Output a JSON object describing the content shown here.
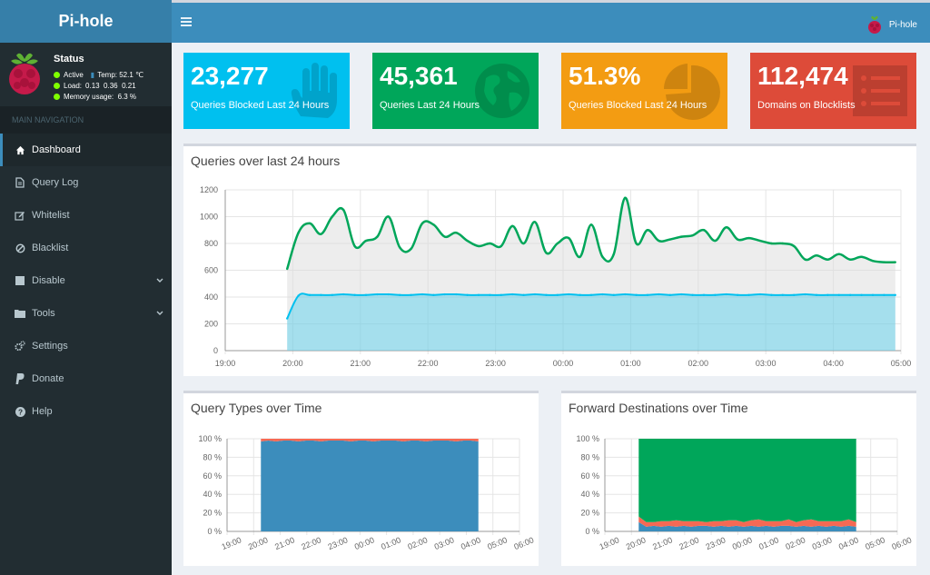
{
  "sidebar": {
    "logo": "Pi-hole",
    "status": {
      "title": "Status",
      "active": "Active",
      "temp": "Temp: 52.1 ℃",
      "load_label": "Load:",
      "load_values": "0.13  0.36  0.21",
      "memory": "Memory usage:  6.3 %"
    },
    "nav_header": "MAIN NAVIGATION",
    "items": [
      {
        "label": "Dashboard",
        "icon": "home-icon",
        "active": true
      },
      {
        "label": "Query Log",
        "icon": "file-icon"
      },
      {
        "label": "Whitelist",
        "icon": "edit-icon"
      },
      {
        "label": "Blacklist",
        "icon": "ban-icon"
      },
      {
        "label": "Disable",
        "icon": "stop-icon",
        "caret": true
      },
      {
        "label": "Tools",
        "icon": "folder-icon",
        "caret": true
      },
      {
        "label": "Settings",
        "icon": "gears-icon"
      },
      {
        "label": "Donate",
        "icon": "paypal-icon"
      },
      {
        "label": "Help",
        "icon": "question-icon"
      }
    ]
  },
  "header": {
    "brand": "Pi-hole"
  },
  "stats": [
    {
      "value": "23,277",
      "label": "Queries Blocked Last 24 Hours",
      "color": "#00c0ef",
      "icon": "hand-icon"
    },
    {
      "value": "45,361",
      "label": "Queries Last 24 Hours",
      "color": "#00a65a",
      "icon": "globe-icon"
    },
    {
      "value": "51.3%",
      "label": "Queries Blocked Last 24 Hours",
      "color": "#f39c12",
      "icon": "pie-chart-icon"
    },
    {
      "value": "112,474",
      "label": "Domains on Blocklists",
      "color": "#dd4b39",
      "icon": "list-icon"
    }
  ],
  "panels": {
    "queries": "Queries over last 24 hours",
    "query_types": "Query Types over Time",
    "forward": "Forward Destinations over Time"
  },
  "chart_data": [
    {
      "type": "area",
      "title": "Queries over last 24 hours",
      "x": [
        "19:55",
        "20:05",
        "20:15",
        "20:25",
        "20:35",
        "20:45",
        "20:55",
        "21:05",
        "21:15",
        "21:25",
        "21:35",
        "21:45",
        "21:55",
        "22:05",
        "22:15",
        "22:25",
        "22:35",
        "22:45",
        "22:55",
        "23:05",
        "23:15",
        "23:25",
        "23:35",
        "23:45",
        "23:55",
        "00:05",
        "00:15",
        "00:25",
        "00:35",
        "00:45",
        "00:55",
        "01:05",
        "01:15",
        "01:25",
        "01:35",
        "01:45",
        "01:55",
        "02:05",
        "02:15",
        "02:25",
        "02:35",
        "02:45",
        "02:55",
        "03:05",
        "03:15",
        "03:25",
        "03:35",
        "03:45",
        "03:55",
        "04:05",
        "04:15",
        "04:25",
        "04:35",
        "04:45",
        "04:55"
      ],
      "xticks": [
        "19:00",
        "20:00",
        "21:00",
        "22:00",
        "23:00",
        "00:00",
        "01:00",
        "02:00",
        "03:00",
        "04:00",
        "05:00"
      ],
      "ylim": [
        0,
        1200
      ],
      "yticks": [
        0,
        200,
        400,
        600,
        800,
        1000,
        1200
      ],
      "grid": true,
      "series": [
        {
          "values": [
            610,
            880,
            950,
            870,
            1000,
            1050,
            780,
            820,
            850,
            1000,
            770,
            760,
            950,
            940,
            850,
            880,
            820,
            780,
            800,
            780,
            930,
            800,
            960,
            730,
            800,
            840,
            700,
            940,
            700,
            720,
            1140,
            800,
            900,
            820,
            830,
            850,
            860,
            900,
            820,
            920,
            830,
            840,
            820,
            800,
            800,
            780,
            680,
            710,
            680,
            720,
            680,
            700,
            670,
            660,
            660
          ],
          "color": "#00a65a"
        },
        {
          "values": [
            240,
            410,
            415,
            415,
            415,
            420,
            415,
            415,
            420,
            420,
            415,
            415,
            420,
            415,
            420,
            420,
            415,
            415,
            415,
            415,
            420,
            415,
            420,
            415,
            415,
            420,
            415,
            415,
            420,
            415,
            420,
            415,
            415,
            420,
            415,
            420,
            415,
            415,
            415,
            420,
            415,
            415,
            420,
            415,
            415,
            415,
            420,
            415,
            415,
            415,
            415,
            415,
            415,
            415,
            415
          ],
          "color": "#00c0ef"
        }
      ]
    },
    {
      "type": "area",
      "title": "Query Types over Time",
      "xticks": [
        "19:00",
        "20:00",
        "21:00",
        "22:00",
        "23:00",
        "00:00",
        "01:00",
        "02:00",
        "03:00",
        "04:00",
        "05:00",
        "06:00"
      ],
      "ylim": [
        0,
        100
      ],
      "yticks": [
        "0 %",
        "20 %",
        "40 %",
        "60 %",
        "80 %",
        "100 %"
      ],
      "series": [
        {
          "name": "",
          "values": [
            97,
            98,
            97,
            98,
            98,
            97,
            98,
            98,
            97,
            98,
            98,
            98,
            97,
            98,
            98,
            97,
            98,
            98,
            98,
            97,
            98,
            98,
            97,
            98,
            98,
            98,
            97,
            98,
            98,
            97
          ],
          "color": "#3c8dbc"
        },
        {
          "name": "",
          "values": [
            3,
            2,
            3,
            2,
            2,
            3,
            2,
            2,
            3,
            2,
            2,
            2,
            3,
            2,
            2,
            3,
            2,
            2,
            2,
            3,
            2,
            2,
            3,
            2,
            2,
            2,
            3,
            2,
            2,
            3
          ],
          "color": "#f56954"
        }
      ]
    },
    {
      "type": "area",
      "title": "Forward Destinations over Time",
      "xticks": [
        "19:00",
        "20:00",
        "21:00",
        "22:00",
        "23:00",
        "00:00",
        "01:00",
        "02:00",
        "03:00",
        "04:00",
        "05:00",
        "06:00"
      ],
      "ylim": [
        0,
        100
      ],
      "yticks": [
        "0 %",
        "20 %",
        "40 %",
        "60 %",
        "80 %",
        "100 %"
      ],
      "series": [
        {
          "name": "",
          "values": [
            10,
            5,
            6,
            5,
            6,
            5,
            6,
            5,
            6,
            6,
            5,
            6,
            5,
            6,
            5,
            6,
            5,
            6,
            5,
            6,
            6,
            5,
            6,
            5,
            6,
            5,
            6,
            5,
            6,
            5
          ],
          "color": "#3c8dbc"
        },
        {
          "name": "",
          "values": [
            6,
            5,
            4,
            6,
            5,
            7,
            5,
            6,
            5,
            4,
            6,
            5,
            7,
            6,
            5,
            6,
            8,
            5,
            6,
            5,
            7,
            5,
            6,
            8,
            5,
            6,
            5,
            6,
            7,
            5
          ],
          "color": "#f56954"
        },
        {
          "name": "",
          "values": [
            84,
            90,
            90,
            89,
            89,
            88,
            89,
            89,
            89,
            90,
            89,
            89,
            88,
            88,
            90,
            88,
            87,
            89,
            89,
            89,
            87,
            90,
            88,
            87,
            89,
            89,
            89,
            89,
            87,
            90
          ],
          "color": "#00a65a"
        }
      ]
    }
  ]
}
